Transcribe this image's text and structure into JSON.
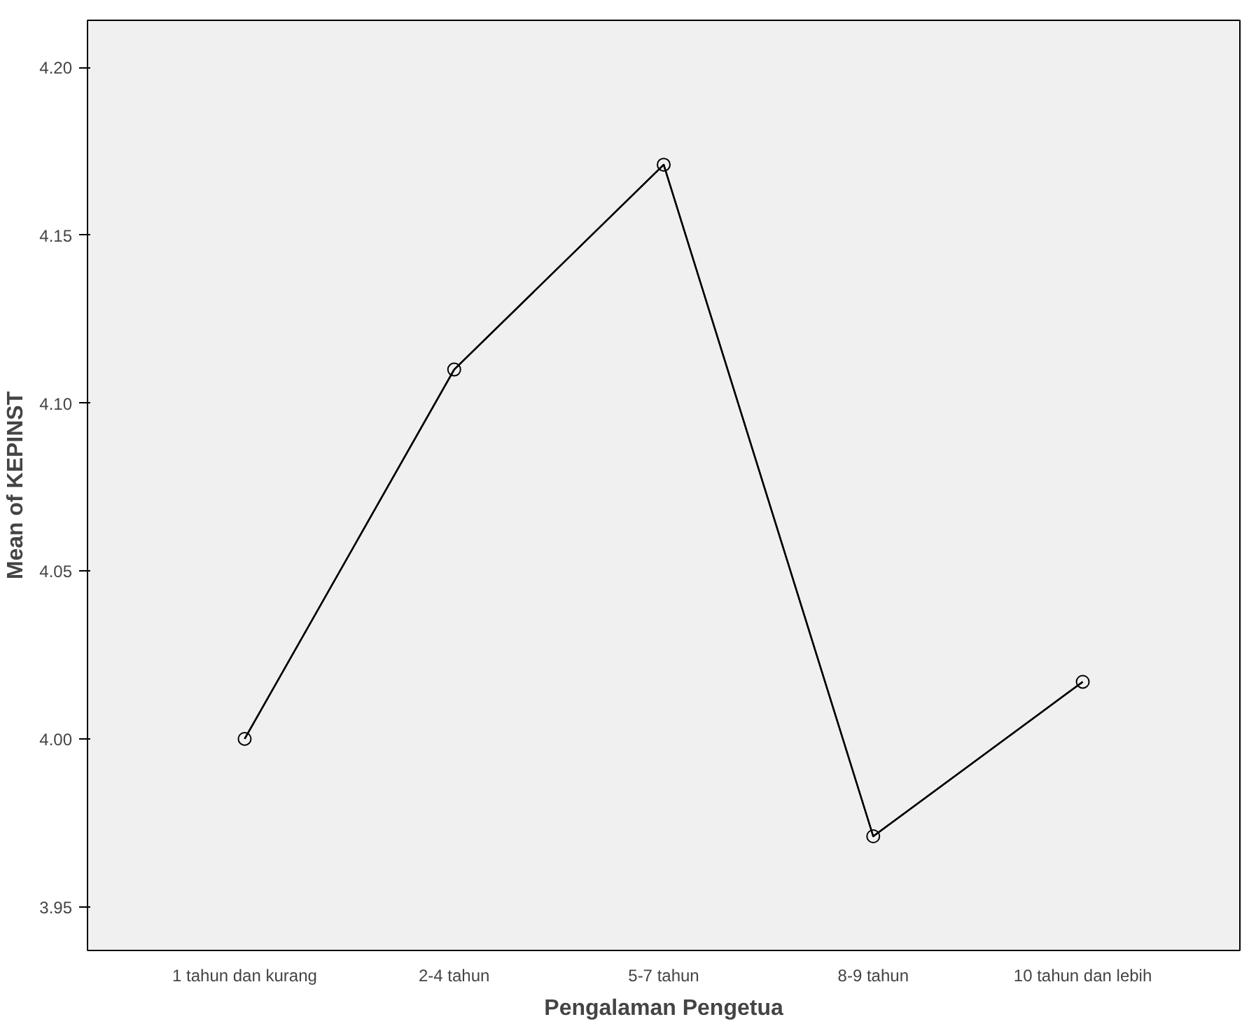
{
  "chart_data": {
    "type": "line",
    "xlabel": "Pengalaman Pengetua",
    "ylabel": "Mean of KEPINST",
    "categories": [
      "1 tahun dan kurang",
      "2-4 tahun",
      "5-7 tahun",
      "8-9 tahun",
      "10 tahun dan lebih"
    ],
    "series": [
      {
        "color": "#000000",
        "values": [
          4.0,
          4.11,
          4.171,
          3.971,
          4.017
        ]
      }
    ],
    "ylim": [
      3.937,
      4.214
    ],
    "yticks": [
      {
        "value": 3.95,
        "label": "3.95"
      },
      {
        "value": 4.0,
        "label": "4.00"
      },
      {
        "value": 4.05,
        "label": "4.05"
      },
      {
        "value": 4.1,
        "label": "4.10"
      },
      {
        "value": 4.15,
        "label": "4.15"
      },
      {
        "value": 4.2,
        "label": "4.20"
      }
    ],
    "grid": false,
    "marker": "circle",
    "line_style": "solid"
  }
}
